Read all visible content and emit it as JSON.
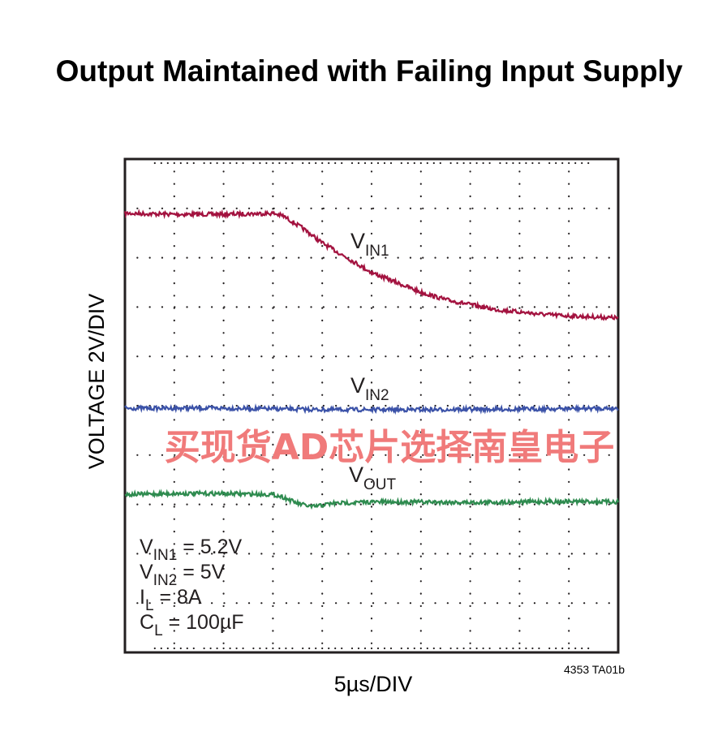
{
  "chart_data": {
    "type": "line",
    "title": "Output Maintained with Failing Input Supply",
    "xlabel": "5µs/DIV",
    "ylabel": "VOLTAGE 2V/DIV",
    "x_divisions": 10,
    "y_divisions": 10,
    "grid": "dotted",
    "reference": "4353 TA01b",
    "series": [
      {
        "name_main": "V",
        "name_sub": "IN1",
        "color": "#a3123f",
        "x": [
          0,
          1,
          2,
          3,
          3.2,
          3.6,
          4,
          4.5,
          5,
          5.5,
          6,
          6.5,
          7,
          7.5,
          8,
          8.5,
          9,
          9.5,
          10
        ],
        "y": [
          8.9,
          8.88,
          8.88,
          8.9,
          8.85,
          8.6,
          8.3,
          8.0,
          7.7,
          7.5,
          7.3,
          7.15,
          7.05,
          6.95,
          6.9,
          6.85,
          6.82,
          6.8,
          6.78
        ]
      },
      {
        "name_main": "V",
        "name_sub": "IN2",
        "color": "#3b52a8",
        "x": [
          0,
          2,
          4,
          6,
          8,
          10
        ],
        "y": [
          4.95,
          4.95,
          4.92,
          4.92,
          4.93,
          4.95
        ]
      },
      {
        "name_main": "V",
        "name_sub": "OUT",
        "color": "#2e8b4f",
        "x": [
          0,
          1,
          2,
          3,
          3.2,
          3.5,
          3.8,
          4.2,
          5,
          6,
          7,
          8,
          9,
          10
        ],
        "y": [
          3.2,
          3.22,
          3.22,
          3.2,
          3.15,
          3.02,
          2.95,
          3.02,
          3.05,
          3.05,
          3.04,
          3.05,
          3.06,
          3.05
        ]
      }
    ],
    "conditions": [
      {
        "main": "V",
        "sub": "IN1",
        "rest": " = 5.2V"
      },
      {
        "main": "V",
        "sub": "IN2",
        "rest": " = 5V"
      },
      {
        "main": "I",
        "sub": "L",
        "rest": " = 8A"
      },
      {
        "main": "C",
        "sub": "L",
        "rest": " = 100µF"
      }
    ]
  },
  "watermark": "买现货AD芯片选择南皇电子"
}
